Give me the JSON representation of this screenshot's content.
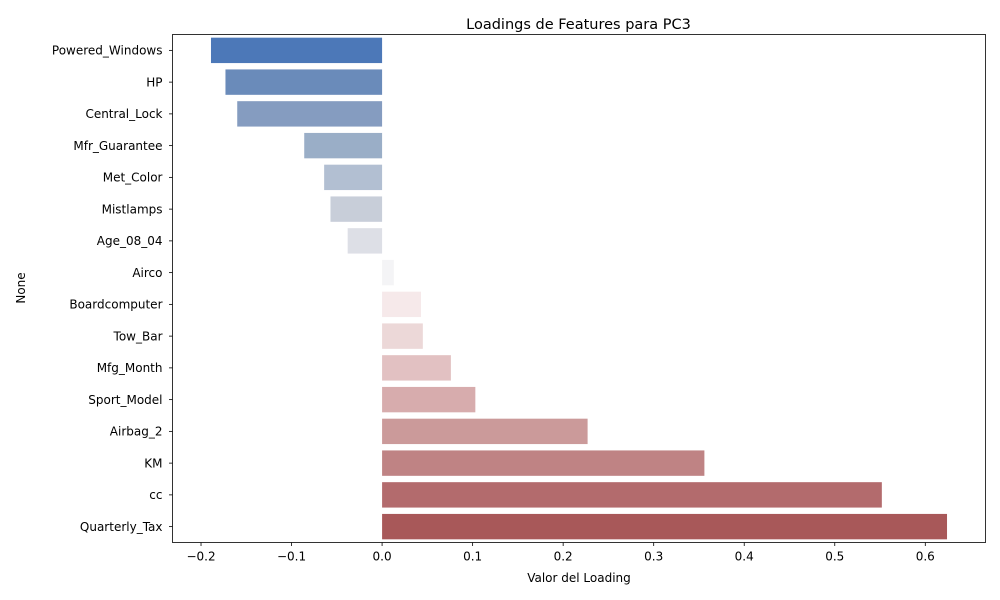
{
  "chart_data": {
    "type": "bar",
    "orientation": "horizontal",
    "title": "Loadings de Features para PC3",
    "xlabel": "Valor del Loading",
    "ylabel": "None",
    "categories": [
      "Powered_Windows",
      "HP",
      "Central_Lock",
      "Mfr_Guarantee",
      "Met_Color",
      "Mistlamps",
      "Age_08_04",
      "Airco",
      "Boardcomputer",
      "Tow_Bar",
      "Mfg_Month",
      "Sport_Model",
      "Airbag_2",
      "KM",
      "cc",
      "Quarterly_Tax"
    ],
    "values": [
      -0.189,
      -0.173,
      -0.16,
      -0.086,
      -0.064,
      -0.057,
      -0.038,
      0.013,
      0.043,
      0.045,
      0.076,
      0.103,
      0.227,
      0.356,
      0.552,
      0.624
    ],
    "xlim": [
      -0.2315,
      0.6665
    ],
    "xticks": [
      -0.2,
      -0.1,
      0.0,
      0.1,
      0.2,
      0.3,
      0.4,
      0.5,
      0.6
    ],
    "xtick_labels": [
      "−0.2",
      "−0.1",
      "0.0",
      "0.1",
      "0.2",
      "0.3",
      "0.4",
      "0.5",
      "0.6"
    ],
    "grid": false,
    "colors": [
      "#4c78b8",
      "#6a8bba",
      "#859cc0",
      "#9aaec7",
      "#b2bfd2",
      "#c8ced9",
      "#dddfe6",
      "#f4f4f6",
      "#f6e9ea",
      "#ecd8d8",
      "#e2c1c2",
      "#d7acad",
      "#cb9a9a",
      "#bf8384",
      "#b36b6d",
      "#a85859"
    ]
  }
}
